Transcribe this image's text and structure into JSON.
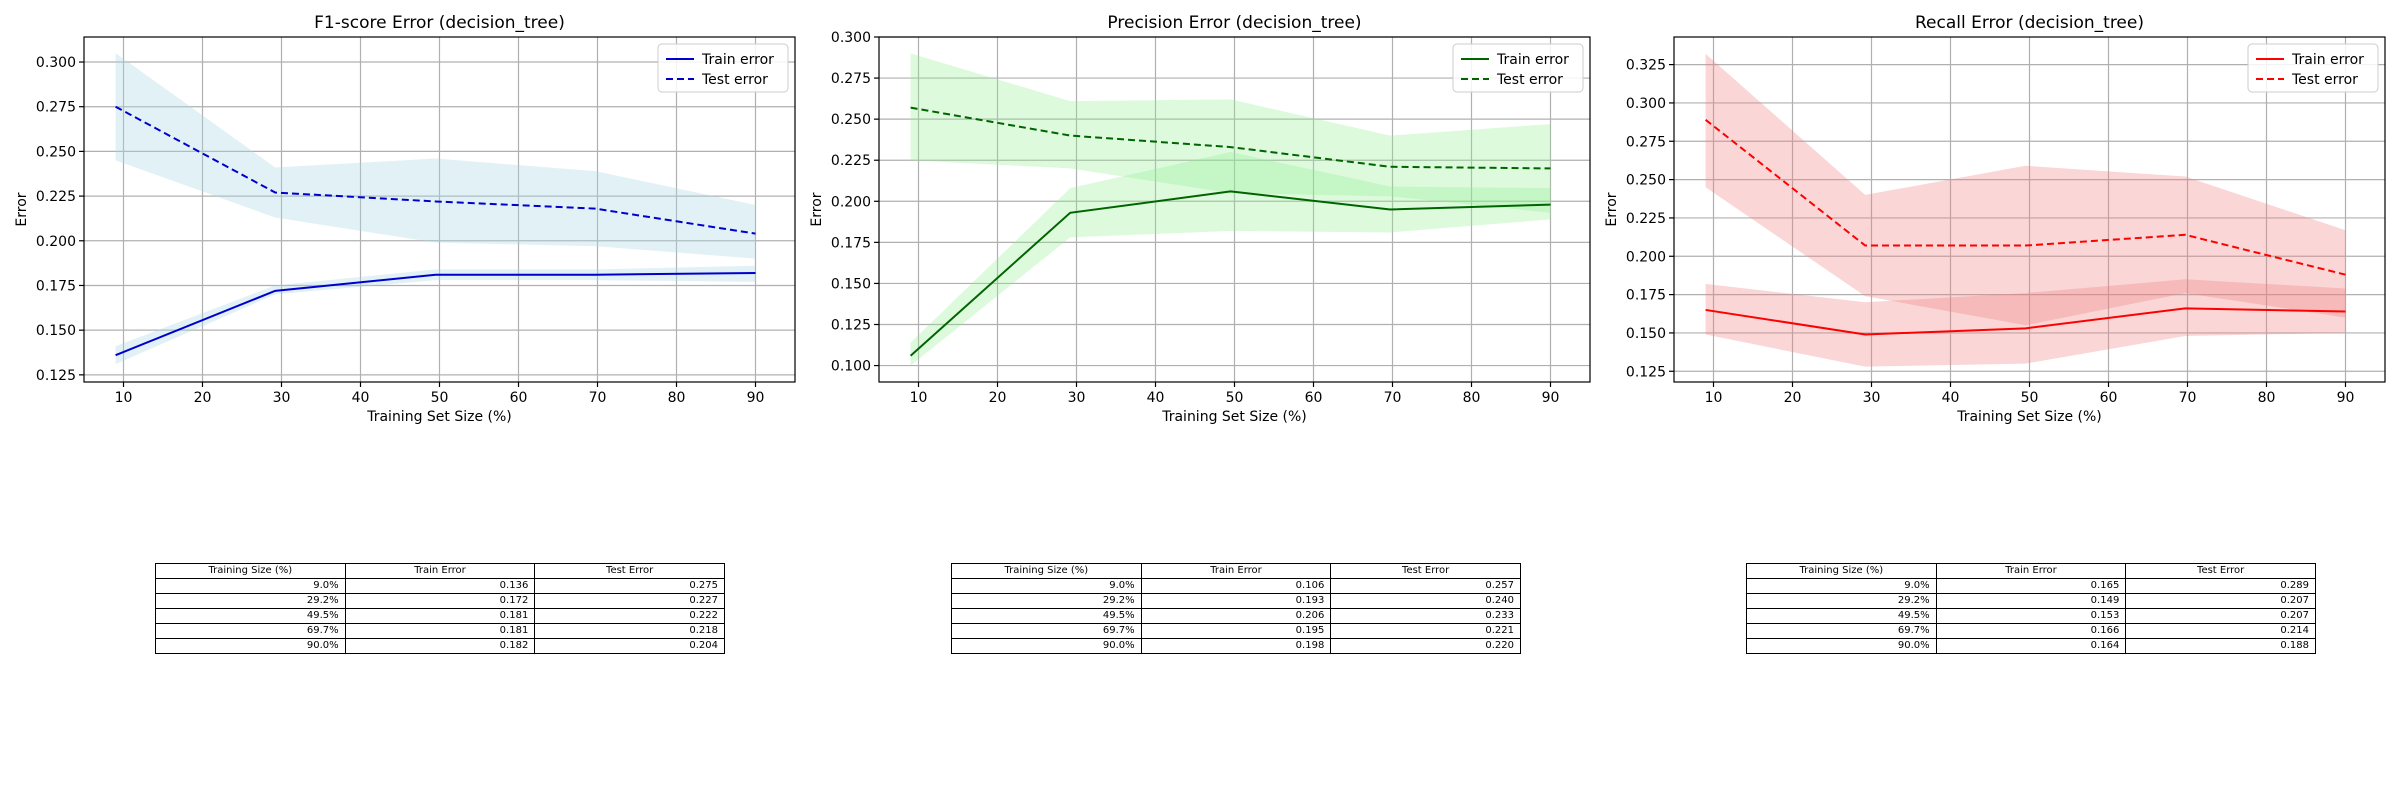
{
  "colors": {
    "f1": "#0000cd",
    "f1_band": "#add8e6",
    "precision": "#006400",
    "precision_band": "#90ee90",
    "recall": "#ff0000",
    "recall_band": "#f08080",
    "grid": "#b0b0b0"
  },
  "chart_data": [
    {
      "type": "line",
      "title": "F1-score Error (decision_tree)",
      "xlabel": "Training Set Size (%)",
      "ylabel": "Error",
      "grid": true,
      "legend": "top-right",
      "xlim": [
        5,
        95
      ],
      "ylim": [
        0.121,
        0.314
      ],
      "xticks": [
        10,
        20,
        30,
        40,
        50,
        60,
        70,
        80,
        90
      ],
      "yticks": [
        0.125,
        0.15,
        0.175,
        0.2,
        0.225,
        0.25,
        0.275,
        0.3
      ],
      "ytick_labels": [
        "0.125",
        "0.150",
        "0.175",
        "0.200",
        "0.225",
        "0.250",
        "0.275",
        "0.300"
      ],
      "x": [
        9.0,
        29.2,
        49.5,
        69.7,
        90.0
      ],
      "series": [
        {
          "name": "Train error",
          "style": "solid",
          "values": [
            0.136,
            0.172,
            0.181,
            0.181,
            0.182
          ],
          "band_lower": [
            0.131,
            0.17,
            0.178,
            0.178,
            0.177
          ],
          "band_upper": [
            0.141,
            0.175,
            0.184,
            0.184,
            0.186
          ]
        },
        {
          "name": "Test error",
          "style": "dashed",
          "values": [
            0.275,
            0.227,
            0.222,
            0.218,
            0.204
          ],
          "band_lower": [
            0.245,
            0.213,
            0.199,
            0.197,
            0.19
          ],
          "band_upper": [
            0.305,
            0.241,
            0.246,
            0.239,
            0.22
          ]
        }
      ]
    },
    {
      "type": "line",
      "title": "Precision Error (decision_tree)",
      "xlabel": "Training Set Size (%)",
      "ylabel": "Error",
      "grid": true,
      "legend": "top-right",
      "xlim": [
        5,
        95
      ],
      "ylim": [
        0.09,
        0.3
      ],
      "xticks": [
        10,
        20,
        30,
        40,
        50,
        60,
        70,
        80,
        90
      ],
      "yticks": [
        0.1,
        0.125,
        0.15,
        0.175,
        0.2,
        0.225,
        0.25,
        0.275,
        0.3
      ],
      "ytick_labels": [
        "0.100",
        "0.125",
        "0.150",
        "0.175",
        "0.200",
        "0.225",
        "0.250",
        "0.275",
        "0.300"
      ],
      "x": [
        9.0,
        29.2,
        49.5,
        69.7,
        90.0
      ],
      "series": [
        {
          "name": "Train error",
          "style": "solid",
          "values": [
            0.106,
            0.193,
            0.206,
            0.195,
            0.198
          ],
          "band_lower": [
            0.1,
            0.178,
            0.182,
            0.181,
            0.189
          ],
          "band_upper": [
            0.114,
            0.208,
            0.23,
            0.209,
            0.208
          ]
        },
        {
          "name": "Test error",
          "style": "dashed",
          "values": [
            0.257,
            0.24,
            0.233,
            0.221,
            0.22
          ],
          "band_lower": [
            0.225,
            0.22,
            0.205,
            0.203,
            0.193
          ],
          "band_upper": [
            0.29,
            0.261,
            0.262,
            0.24,
            0.247
          ]
        }
      ]
    },
    {
      "type": "line",
      "title": "Recall Error (decision_tree)",
      "xlabel": "Training Set Size (%)",
      "ylabel": "Error",
      "grid": true,
      "legend": "top-right",
      "xlim": [
        5,
        95
      ],
      "ylim": [
        0.118,
        0.343
      ],
      "xticks": [
        10,
        20,
        30,
        40,
        50,
        60,
        70,
        80,
        90
      ],
      "yticks": [
        0.125,
        0.15,
        0.175,
        0.2,
        0.225,
        0.25,
        0.275,
        0.3,
        0.325
      ],
      "ytick_labels": [
        "0.125",
        "0.150",
        "0.175",
        "0.200",
        "0.225",
        "0.250",
        "0.275",
        "0.300",
        "0.325"
      ],
      "x": [
        9.0,
        29.2,
        49.5,
        69.7,
        90.0
      ],
      "series": [
        {
          "name": "Train error",
          "style": "solid",
          "values": [
            0.165,
            0.149,
            0.153,
            0.166,
            0.164
          ],
          "band_lower": [
            0.149,
            0.128,
            0.13,
            0.148,
            0.15
          ],
          "band_upper": [
            0.182,
            0.17,
            0.176,
            0.185,
            0.179
          ]
        },
        {
          "name": "Test error",
          "style": "dashed",
          "values": [
            0.289,
            0.207,
            0.207,
            0.214,
            0.188
          ],
          "band_lower": [
            0.245,
            0.174,
            0.155,
            0.176,
            0.16
          ],
          "band_upper": [
            0.332,
            0.24,
            0.259,
            0.252,
            0.217
          ]
        }
      ]
    }
  ],
  "tables": [
    {
      "headers": [
        "Training Size (%)",
        "Train Error",
        "Test Error"
      ],
      "rows": [
        [
          "9.0%",
          "0.136",
          "0.275"
        ],
        [
          "29.2%",
          "0.172",
          "0.227"
        ],
        [
          "49.5%",
          "0.181",
          "0.222"
        ],
        [
          "69.7%",
          "0.181",
          "0.218"
        ],
        [
          "90.0%",
          "0.182",
          "0.204"
        ]
      ]
    },
    {
      "headers": [
        "Training Size (%)",
        "Train Error",
        "Test Error"
      ],
      "rows": [
        [
          "9.0%",
          "0.106",
          "0.257"
        ],
        [
          "29.2%",
          "0.193",
          "0.240"
        ],
        [
          "49.5%",
          "0.206",
          "0.233"
        ],
        [
          "69.7%",
          "0.195",
          "0.221"
        ],
        [
          "90.0%",
          "0.198",
          "0.220"
        ]
      ]
    },
    {
      "headers": [
        "Training Size (%)",
        "Train Error",
        "Test Error"
      ],
      "rows": [
        [
          "9.0%",
          "0.165",
          "0.289"
        ],
        [
          "29.2%",
          "0.149",
          "0.207"
        ],
        [
          "49.5%",
          "0.153",
          "0.207"
        ],
        [
          "69.7%",
          "0.166",
          "0.214"
        ],
        [
          "90.0%",
          "0.164",
          "0.188"
        ]
      ]
    }
  ]
}
